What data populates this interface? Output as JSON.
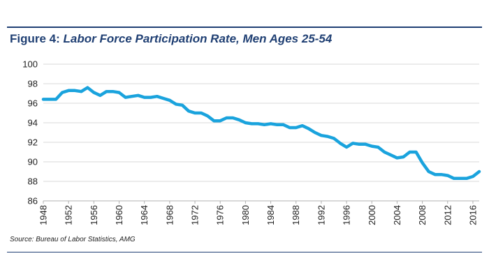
{
  "title": {
    "prefix": "Figure 4:",
    "text": "Labor Force Participation Rate, Men Ages 25-54"
  },
  "source": "Source: Bureau of Labor Statistics, AMG",
  "colors": {
    "accent": "#1f3f73",
    "line": "#1aa3dd",
    "grid": "#d9d9d9"
  },
  "chart_data": {
    "type": "line",
    "title": "Labor Force Participation Rate, Men Ages 25-54",
    "xlabel": "",
    "ylabel": "",
    "ylim": [
      86,
      100
    ],
    "xlim": [
      1948,
      2017
    ],
    "yticks": [
      86,
      88,
      90,
      92,
      94,
      96,
      98,
      100
    ],
    "xticks": [
      1948,
      1952,
      1956,
      1960,
      1964,
      1968,
      1972,
      1976,
      1980,
      1984,
      1988,
      1992,
      1996,
      2000,
      2004,
      2008,
      2012,
      2016
    ],
    "grid": "horizontal",
    "series": [
      {
        "x": [
          1948,
          1949,
          1950,
          1951,
          1952,
          1953,
          1954,
          1955,
          1956,
          1957,
          1958,
          1959,
          1960,
          1961,
          1962,
          1963,
          1964,
          1965,
          1966,
          1967,
          1968,
          1969,
          1970,
          1971,
          1972,
          1973,
          1974,
          1975,
          1976,
          1977,
          1978,
          1979,
          1980,
          1981,
          1982,
          1983,
          1984,
          1985,
          1986,
          1987,
          1988,
          1989,
          1990,
          1991,
          1992,
          1993,
          1994,
          1995,
          1996,
          1997,
          1998,
          1999,
          2000,
          2001,
          2002,
          2003,
          2004,
          2005,
          2006,
          2007,
          2008,
          2009,
          2010,
          2011,
          2012,
          2013,
          2014,
          2015,
          2016,
          2017
        ],
        "y": [
          96.4,
          96.4,
          96.4,
          97.1,
          97.3,
          97.3,
          97.2,
          97.6,
          97.1,
          96.8,
          97.2,
          97.2,
          97.1,
          96.6,
          96.7,
          96.8,
          96.6,
          96.6,
          96.7,
          96.5,
          96.3,
          95.9,
          95.8,
          95.2,
          95.0,
          95.0,
          94.7,
          94.2,
          94.2,
          94.5,
          94.5,
          94.3,
          94.0,
          93.9,
          93.9,
          93.8,
          93.9,
          93.8,
          93.8,
          93.5,
          93.5,
          93.7,
          93.4,
          93.0,
          92.7,
          92.6,
          92.4,
          91.9,
          91.5,
          91.9,
          91.8,
          91.8,
          91.6,
          91.5,
          91.0,
          90.7,
          90.4,
          90.5,
          91.0,
          91.0,
          89.9,
          89.0,
          88.7,
          88.7,
          88.6,
          88.3,
          88.3,
          88.3,
          88.5,
          89.0
        ]
      }
    ]
  }
}
